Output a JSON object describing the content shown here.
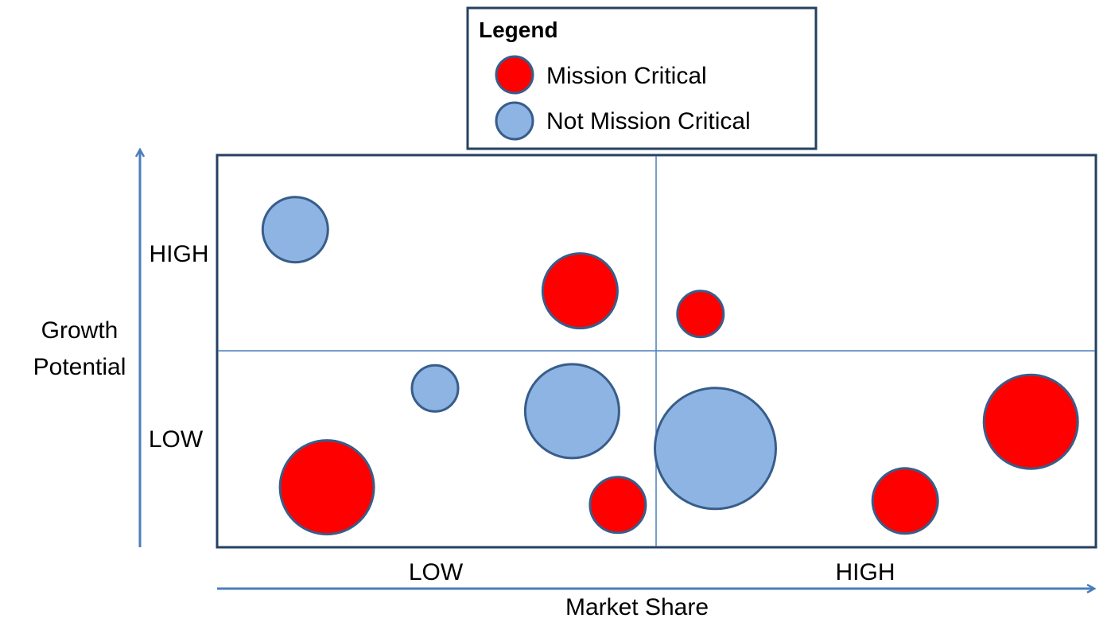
{
  "chart_data": {
    "type": "scatter",
    "title": "",
    "xlabel": "Market Share",
    "ylabel": [
      "Growth",
      "Potential"
    ],
    "xlim": [
      0,
      100
    ],
    "ylim": [
      0,
      100
    ],
    "x_tick_labels": [
      "LOW",
      "HIGH"
    ],
    "y_tick_labels": [
      "HIGH",
      "LOW"
    ],
    "grid": "quadrant dividers at the midpoints",
    "legend": {
      "title": "Legend",
      "placement": "top-center",
      "entries": [
        "Mission Critical",
        "Not Mission Critical"
      ]
    },
    "series": [
      {
        "name": "Mission Critical",
        "color": "#ff0000",
        "points": [
          {
            "x": 41.3,
            "y": 65.4,
            "size": 47
          },
          {
            "x": 55.0,
            "y": 59.5,
            "size": 29
          },
          {
            "x": 12.5,
            "y": 15.3,
            "size": 59
          },
          {
            "x": 45.6,
            "y": 10.8,
            "size": 35
          },
          {
            "x": 78.3,
            "y": 11.8,
            "size": 41
          },
          {
            "x": 92.6,
            "y": 32.0,
            "size": 59
          }
        ]
      },
      {
        "name": "Not Mission Critical",
        "color": "#8eb4e3",
        "points": [
          {
            "x": 8.9,
            "y": 81.0,
            "size": 41
          },
          {
            "x": 24.8,
            "y": 40.5,
            "size": 29
          },
          {
            "x": 40.4,
            "y": 34.7,
            "size": 59
          },
          {
            "x": 56.7,
            "y": 25.2,
            "size": 76
          }
        ]
      }
    ],
    "marker_edge_color": "#385d8a",
    "frame_color": "#254061",
    "arrow_color": "#4a7ebb"
  }
}
